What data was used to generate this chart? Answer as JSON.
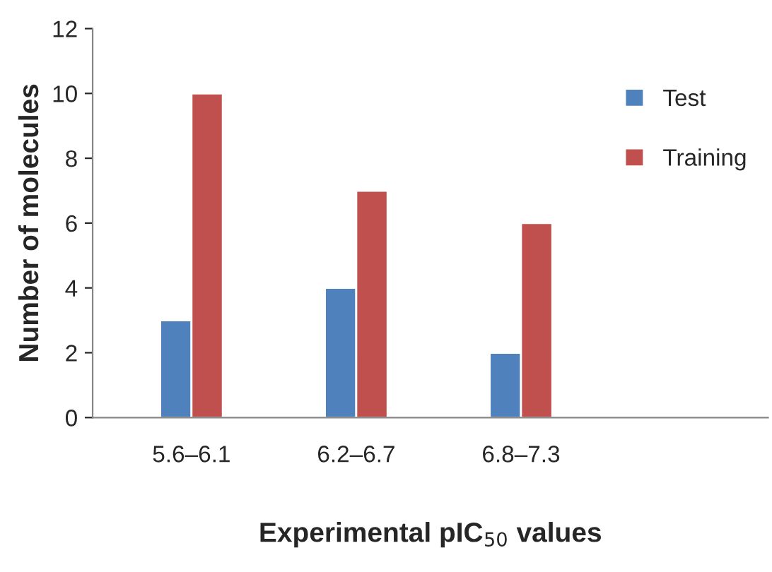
{
  "chart_data": {
    "type": "bar",
    "xlabel": "Experimental pIC$_{50}$ values",
    "ylabel": "Number of molecules",
    "categories": [
      "5.6–6.1",
      "6.2–6.7",
      "6.8–7.3",
      null
    ],
    "series": [
      {
        "name": "Test",
        "color": "#4f81bd",
        "values": [
          3,
          4,
          2,
          null
        ]
      },
      {
        "name": "Training",
        "color": "#c0504d",
        "values": [
          10,
          7,
          6,
          null
        ]
      }
    ],
    "ylim": [
      0,
      12
    ],
    "yticks": [
      0,
      2,
      4,
      6,
      8,
      10,
      12
    ],
    "grid": false,
    "legend": "top right"
  }
}
